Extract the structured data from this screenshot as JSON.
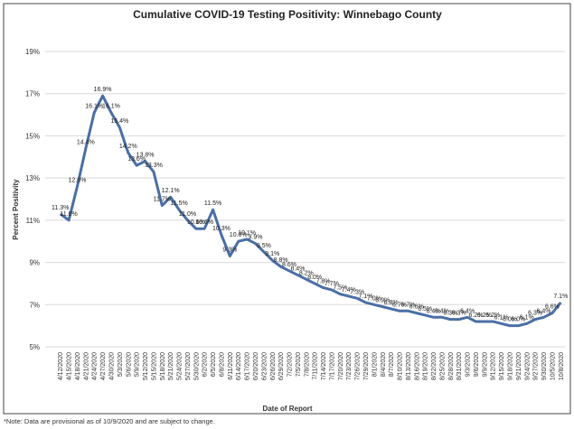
{
  "chart_data": {
    "type": "line",
    "title": "Cumulative COVID-19 Testing Positivity: Winnebago County",
    "x_label": "Date of Report",
    "y_label": "Percent Positivity",
    "note": "*Note: Data are provisional as of 10/9/2020 and are subject to change.",
    "categories": [
      "4/12/2020",
      "4/15/2020",
      "4/18/2020",
      "4/21/2020",
      "4/24/2020",
      "4/27/2020",
      "4/30/2020",
      "5/3/2020",
      "5/6/2020",
      "5/9/2020",
      "5/12/2020",
      "5/15/2020",
      "5/18/2020",
      "5/21/2020",
      "5/24/2020",
      "5/27/2020",
      "5/30/2020",
      "6/2/2020",
      "6/5/2020",
      "6/8/2020",
      "6/11/2020",
      "6/14/2020",
      "6/17/2020",
      "6/20/2020",
      "6/23/2020",
      "6/26/2020",
      "6/29/2020",
      "7/2/2020",
      "7/5/2020",
      "7/8/2020",
      "7/11/2020",
      "7/14/2020",
      "7/17/2020",
      "7/20/2020",
      "7/23/2020",
      "7/26/2020",
      "7/29/2020",
      "8/1/2020",
      "8/4/2020",
      "8/7/2020",
      "8/10/2020",
      "8/13/2020",
      "8/16/2020",
      "8/19/2020",
      "8/22/2020",
      "8/25/2020",
      "8/28/2020",
      "8/31/2020",
      "9/3/2020",
      "9/6/2020",
      "9/9/2020",
      "9/12/2020",
      "9/15/2020",
      "9/18/2020",
      "9/21/2020",
      "9/24/2020",
      "9/27/2020",
      "9/30/2020",
      "10/5/2020",
      "10/8/2020"
    ],
    "series": [
      {
        "name": "Percent Positivity",
        "color": "#4a6fa5",
        "values": [
          11.3,
          11.0,
          12.6,
          14.4,
          16.1,
          16.9,
          16.1,
          15.4,
          14.2,
          13.6,
          13.8,
          13.3,
          11.7,
          12.1,
          11.5,
          11.0,
          10.6,
          10.6,
          11.5,
          10.3,
          9.3,
          10.0,
          10.1,
          9.9,
          9.5,
          9.1,
          8.8,
          8.6,
          8.4,
          8.2,
          8.0,
          7.8,
          7.7,
          7.5,
          7.4,
          7.3,
          7.1,
          7.0,
          6.9,
          6.8,
          6.7,
          6.7,
          6.6,
          6.5,
          6.4,
          6.4,
          6.3,
          6.3,
          6.4,
          6.2,
          6.2,
          6.2,
          6.1,
          6.0,
          6.0,
          6.1,
          6.3,
          6.4,
          6.6,
          7.1
        ],
        "value_labels": [
          "11.3%",
          "11.0%",
          "12.6%",
          "14.4%",
          "16.1%",
          "16.9%",
          "16.1%",
          "15.4%",
          "14.2%",
          "13.6%",
          "13.8%",
          "13.3%",
          "11.7%",
          "12.1%",
          "11.5%",
          "11.0%",
          "10.6%",
          "10.6%",
          "11.5%",
          "10.3%",
          "9.3%",
          "10.0%",
          "10.1%",
          "9.9%",
          "9.5%",
          "9.1%",
          "8.8%",
          "8.6%",
          "8.4%",
          "8.2%",
          "8.0%",
          "7.8%",
          "7.7%",
          "7.5%",
          "7.4%",
          "7.3%",
          "7.1%",
          "7.0%",
          "6.9%",
          "6.8%",
          "6.7%",
          "6.7%",
          "6.6%",
          "6.5%",
          "6.4%",
          "6.4%",
          "6.3%",
          "6.3%",
          "6.4%",
          "6.2%",
          "6.2%",
          "6.2%",
          "6.1%",
          "6.0%",
          "6.0%",
          "6.1%",
          "6.3%",
          "6.4%",
          "6.6%",
          "7.1%"
        ]
      }
    ],
    "ylim": [
      5,
      19
    ],
    "yticks": [
      {
        "value": 5,
        "label": "5%"
      },
      {
        "value": 7,
        "label": "7%"
      },
      {
        "value": 9,
        "label": "9%"
      },
      {
        "value": 11,
        "label": "11%"
      },
      {
        "value": 13,
        "label": "13%"
      },
      {
        "value": 15,
        "label": "15%"
      },
      {
        "value": 17,
        "label": "17%"
      },
      {
        "value": 19,
        "label": "19%"
      }
    ],
    "grid": true
  }
}
